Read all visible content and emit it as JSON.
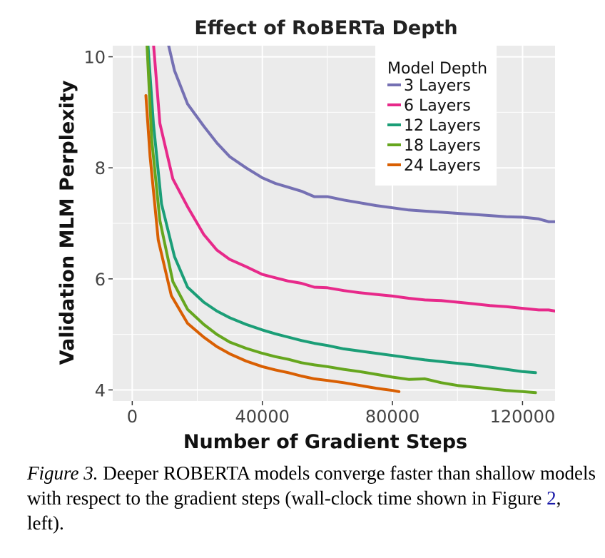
{
  "chart_data": {
    "type": "line",
    "title": "Effect of RoBERTa Depth",
    "xlabel": "Number of Gradient Steps",
    "ylabel": "Validation MLM Perplexity",
    "xlim": [
      -6000,
      130000
    ],
    "ylim": [
      3.8,
      10.2
    ],
    "xticks": [
      0,
      40000,
      80000,
      120000
    ],
    "xtick_labels": [
      "0",
      "40000",
      "80000",
      "120000"
    ],
    "yticks": [
      4,
      6,
      8,
      10
    ],
    "ytick_labels": [
      "4",
      "6",
      "8",
      "10"
    ],
    "grid": true,
    "legend_title": "Model Depth",
    "legend_position": "top-right",
    "series": [
      {
        "name": "3 Layers",
        "color": "#7570b3",
        "x": [
          11000,
          13000,
          17000,
          22000,
          26000,
          30000,
          35000,
          40000,
          44000,
          48000,
          52000,
          56000,
          60000,
          65000,
          70000,
          75000,
          80000,
          85000,
          90000,
          95000,
          100000,
          105000,
          110000,
          115000,
          120000,
          125000,
          128000,
          130000
        ],
        "y": [
          10.25,
          9.75,
          9.15,
          8.75,
          8.45,
          8.2,
          8.0,
          7.82,
          7.72,
          7.65,
          7.58,
          7.48,
          7.48,
          7.42,
          7.37,
          7.32,
          7.28,
          7.24,
          7.22,
          7.2,
          7.18,
          7.16,
          7.14,
          7.12,
          7.11,
          7.08,
          7.03,
          7.03
        ]
      },
      {
        "name": "6 Layers",
        "color": "#e7298a",
        "x": [
          6500,
          8500,
          12500,
          17000,
          22000,
          26000,
          30000,
          35000,
          40000,
          44000,
          48000,
          52000,
          56000,
          60000,
          65000,
          70000,
          75000,
          80000,
          85000,
          90000,
          95000,
          100000,
          105000,
          110000,
          115000,
          120000,
          125000,
          128000,
          130000
        ],
        "y": [
          10.25,
          8.8,
          7.8,
          7.3,
          6.8,
          6.52,
          6.35,
          6.22,
          6.08,
          6.02,
          5.96,
          5.92,
          5.85,
          5.84,
          5.79,
          5.75,
          5.72,
          5.69,
          5.65,
          5.62,
          5.61,
          5.58,
          5.55,
          5.52,
          5.5,
          5.47,
          5.44,
          5.44,
          5.42
        ]
      },
      {
        "name": "12 Layers",
        "color": "#1b9e77",
        "x": [
          4800,
          6500,
          9000,
          13000,
          17000,
          22000,
          26000,
          30000,
          35000,
          40000,
          44000,
          48000,
          52000,
          56000,
          60000,
          65000,
          70000,
          75000,
          80000,
          85000,
          90000,
          95000,
          100000,
          105000,
          110000,
          115000,
          120000,
          124000
        ],
        "y": [
          10.25,
          8.8,
          7.35,
          6.4,
          5.85,
          5.58,
          5.42,
          5.3,
          5.18,
          5.08,
          5.01,
          4.95,
          4.89,
          4.84,
          4.8,
          4.74,
          4.7,
          4.66,
          4.62,
          4.58,
          4.54,
          4.51,
          4.48,
          4.45,
          4.41,
          4.37,
          4.33,
          4.31
        ]
      },
      {
        "name": "18 Layers",
        "color": "#66a61e",
        "x": [
          4500,
          6000,
          8500,
          12500,
          17000,
          22000,
          26000,
          30000,
          35000,
          40000,
          44000,
          48000,
          52000,
          56000,
          60000,
          65000,
          70000,
          75000,
          80000,
          85000,
          90000,
          95000,
          100000,
          105000,
          110000,
          115000,
          120000,
          124000
        ],
        "y": [
          10.25,
          8.5,
          7.05,
          5.95,
          5.45,
          5.18,
          5.0,
          4.86,
          4.75,
          4.66,
          4.6,
          4.55,
          4.49,
          4.45,
          4.42,
          4.37,
          4.33,
          4.28,
          4.23,
          4.19,
          4.2,
          4.13,
          4.08,
          4.05,
          4.02,
          3.99,
          3.97,
          3.95
        ]
      },
      {
        "name": "24 Layers",
        "color": "#d95f02",
        "x": [
          4200,
          5500,
          8000,
          12000,
          17000,
          22000,
          26000,
          30000,
          35000,
          40000,
          44000,
          48000,
          52000,
          56000,
          60000,
          65000,
          70000,
          75000,
          80000,
          82000
        ],
        "y": [
          9.3,
          8.2,
          6.7,
          5.7,
          5.2,
          4.95,
          4.78,
          4.65,
          4.52,
          4.42,
          4.36,
          4.31,
          4.25,
          4.2,
          4.17,
          4.13,
          4.08,
          4.03,
          3.99,
          3.97
        ]
      }
    ]
  },
  "caption": {
    "figure_label": "Figure 3.",
    "text_before_link": " Deeper ROBERTA models converge faster than shallow models with respect to the gradient steps (wall-clock time shown in Figure ",
    "link_text": "2",
    "text_after_link": ", left)."
  }
}
